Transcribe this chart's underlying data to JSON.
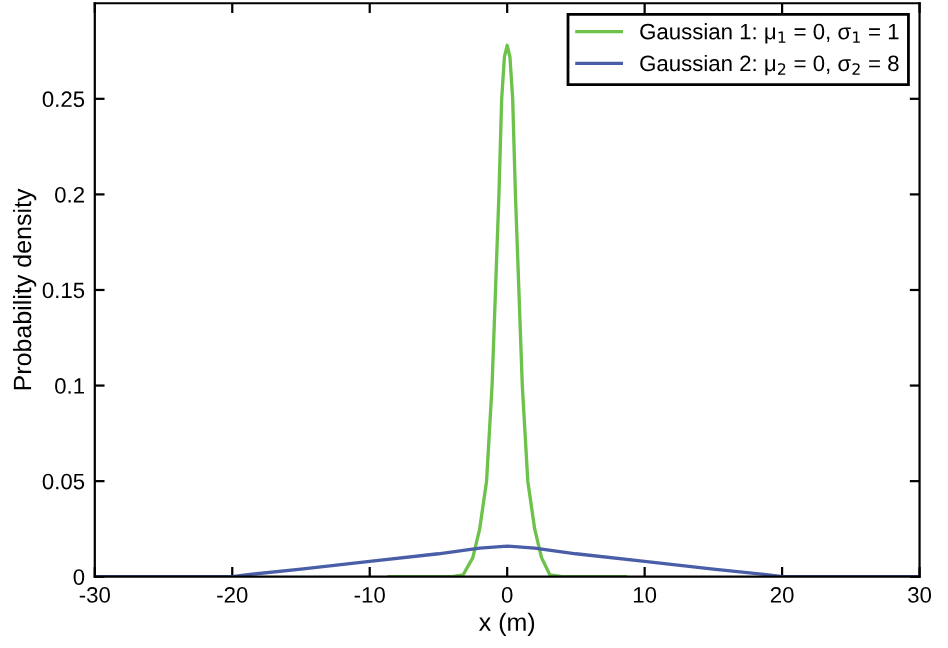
{
  "chart_data": {
    "type": "line",
    "xlabel": "x (m)",
    "ylabel": "Probability density",
    "xlim": [
      -30,
      30
    ],
    "xticks": [
      -30,
      -20,
      -10,
      0,
      10,
      20,
      30
    ],
    "ylim": [
      0,
      0.3
    ],
    "yticks": [
      0,
      0.05,
      0.1,
      0.15,
      0.2,
      0.25
    ],
    "grid": false,
    "legend": "top right",
    "marker": "none",
    "line_style": "solid",
    "series": [
      {
        "name": "Gaussian 1: μ$_{1}$ = 0, σ$_{1}$ = 1",
        "color": "#6cc24a",
        "x": [
          -8.6,
          -4,
          -3.2,
          -2.5,
          -2,
          -1.5,
          -1.1,
          -0.6,
          -0.4,
          -0.2,
          0,
          0.2,
          0.4,
          0.6,
          1.1,
          1.5,
          2,
          2.5,
          3.1,
          4,
          8.6
        ],
        "values": [
          0,
          0,
          0.001,
          0.01,
          0.025,
          0.05,
          0.1,
          0.2,
          0.25,
          0.272,
          0.278,
          0.272,
          0.25,
          0.2,
          0.1,
          0.05,
          0.025,
          0.01,
          0.001,
          0,
          0
        ]
      },
      {
        "name": "Gaussian 2: μ$_{2}$ = 0, σ$_{2}$ = 8",
        "color": "#4a5ea8",
        "x": [
          -30,
          -20,
          -19,
          -15,
          -10,
          -5,
          -2,
          0,
          2,
          5,
          10,
          15,
          19,
          20,
          30
        ],
        "values": [
          0,
          0,
          0.001,
          0.004,
          0.008,
          0.012,
          0.015,
          0.016,
          0.015,
          0.012,
          0.008,
          0.004,
          0.001,
          0,
          0
        ]
      }
    ]
  }
}
